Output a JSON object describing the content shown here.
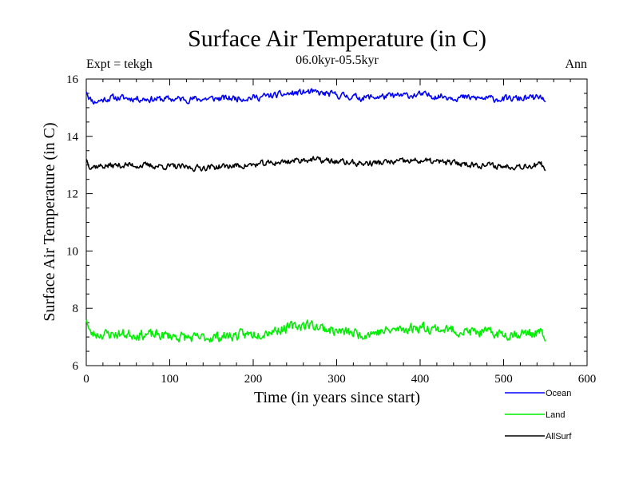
{
  "chart_data": {
    "type": "line",
    "title": "Surface Air Temperature (in C)",
    "subtitle": "06.0kyr-05.5kyr",
    "left_note": "Expt = tekgh",
    "right_note": "Ann",
    "xlabel": "Time (in years since start)",
    "ylabel": "Surface Air Temperature (in C)",
    "xlim": [
      0,
      600
    ],
    "ylim": [
      6,
      16
    ],
    "x_ticks": [
      0,
      100,
      200,
      300,
      400,
      500,
      600
    ],
    "y_ticks": [
      6,
      8,
      10,
      12,
      14,
      16
    ],
    "x_tick_labels": [
      "0",
      "100",
      "200",
      "300",
      "400",
      "500",
      "600"
    ],
    "y_tick_labels": [
      "6",
      "8",
      "10",
      "12",
      "14",
      "16"
    ],
    "x_range": [
      0,
      550
    ],
    "series": [
      {
        "name": "Ocean",
        "color": "#0000ff",
        "mean": 15.4,
        "amplitude": 0.13,
        "seed": 11,
        "anchors": [
          [
            0,
            15.55
          ],
          [
            5,
            15.3
          ],
          [
            10,
            15.2
          ],
          [
            30,
            15.35
          ],
          [
            80,
            15.3
          ],
          [
            100,
            15.3
          ],
          [
            130,
            15.3
          ],
          [
            200,
            15.35
          ],
          [
            265,
            15.55
          ],
          [
            330,
            15.35
          ],
          [
            400,
            15.45
          ],
          [
            450,
            15.35
          ],
          [
            500,
            15.3
          ],
          [
            545,
            15.35
          ],
          [
            550,
            15.2
          ]
        ]
      },
      {
        "name": "Land",
        "color": "#00ee00",
        "mean": 7.15,
        "amplitude": 0.2,
        "seed": 23,
        "anchors": [
          [
            0,
            7.6
          ],
          [
            5,
            7.1
          ],
          [
            50,
            7.1
          ],
          [
            100,
            7.05
          ],
          [
            130,
            6.95
          ],
          [
            200,
            7.1
          ],
          [
            265,
            7.45
          ],
          [
            300,
            7.2
          ],
          [
            330,
            7.1
          ],
          [
            400,
            7.35
          ],
          [
            450,
            7.2
          ],
          [
            500,
            7.1
          ],
          [
            545,
            7.15
          ],
          [
            550,
            6.85
          ]
        ]
      },
      {
        "name": "AllSurf",
        "color": "#000000",
        "mean": 13.0,
        "amplitude": 0.12,
        "seed": 37,
        "anchors": [
          [
            0,
            13.2
          ],
          [
            5,
            12.95
          ],
          [
            50,
            13.0
          ],
          [
            100,
            12.95
          ],
          [
            130,
            12.9
          ],
          [
            200,
            13.0
          ],
          [
            265,
            13.2
          ],
          [
            330,
            13.05
          ],
          [
            400,
            13.15
          ],
          [
            450,
            13.05
          ],
          [
            500,
            12.95
          ],
          [
            545,
            13.0
          ],
          [
            550,
            12.8
          ]
        ]
      }
    ]
  }
}
